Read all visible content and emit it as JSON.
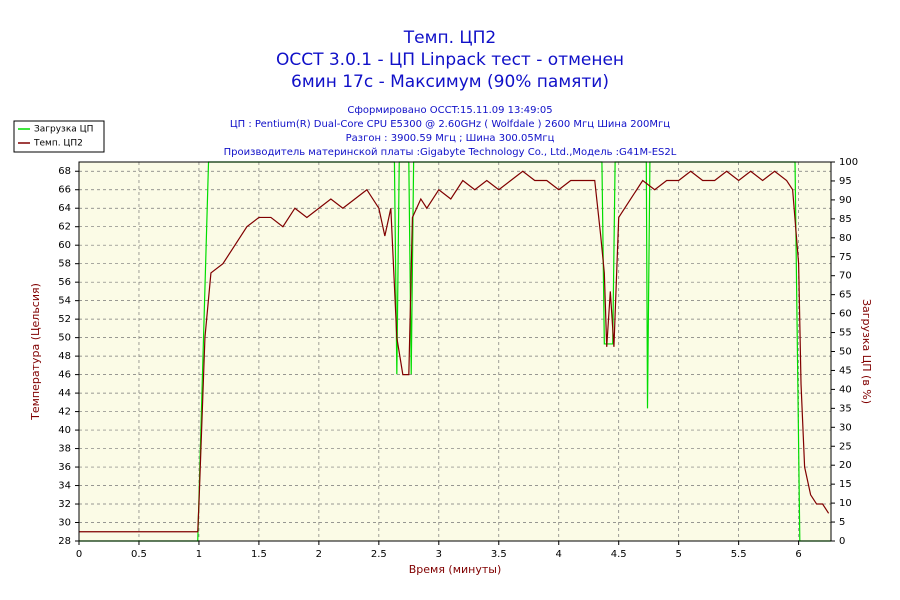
{
  "chart_data": {
    "type": "line",
    "title": [
      "Темп. ЦП2",
      "OCCT 3.0.1 - ЦП Linpack тест - отменен",
      "6мин 17с - Максимум (90% памяти)"
    ],
    "subtitle": [
      "Сформировано OCCT:15.11.09 13:49:05",
      "ЦП : Pentium(R) Dual-Core CPU E5300 @ 2.60GHz ( Wolfdale ) 2600 Мгц Шина 200Мгц",
      "Разгон : 3900.59 Мгц ; Шина 300.05Мгц",
      "Производитель материнской платы :Gigabyte Technology Co., Ltd.,Модель :G41M-ES2L"
    ],
    "x_label": "Время (минуты)",
    "y_label": "Температура (Цельсия)",
    "y2_label": "Загрузка ЦП (в %)",
    "xlim": [
      0,
      6.27
    ],
    "xticks": [
      0,
      0.5,
      1,
      1.5,
      2,
      2.5,
      3,
      3.5,
      4,
      4.5,
      5,
      5.5,
      6
    ],
    "ylim": [
      28,
      69
    ],
    "yticks": [
      28,
      30,
      32,
      34,
      36,
      38,
      40,
      42,
      44,
      46,
      48,
      50,
      52,
      54,
      56,
      58,
      60,
      62,
      64,
      66,
      68
    ],
    "y2lim": [
      0,
      100
    ],
    "y2ticks": [
      0,
      5,
      10,
      15,
      20,
      25,
      30,
      35,
      40,
      45,
      50,
      55,
      60,
      65,
      70,
      75,
      80,
      85,
      90,
      95,
      100
    ],
    "grid": true,
    "legend": "top-left",
    "series": [
      {
        "name": "Загрузка ЦП",
        "color": "#00dd00",
        "axis": "y2",
        "x": [
          0,
          0.99,
          1.08,
          2.63,
          2.65,
          2.67,
          2.75,
          2.77,
          2.79,
          4.36,
          4.38,
          4.45,
          4.47,
          4.73,
          4.74,
          4.76,
          5.97,
          6.01,
          6.27
        ],
        "values": [
          0,
          0,
          100,
          100,
          44,
          100,
          100,
          44,
          100,
          100,
          52,
          52,
          100,
          100,
          35,
          100,
          100,
          0,
          0
        ]
      },
      {
        "name": "Темп. ЦП2",
        "color": "#800000",
        "x": [
          0,
          0.99,
          1.0,
          1.05,
          1.1,
          1.2,
          1.3,
          1.4,
          1.5,
          1.6,
          1.7,
          1.8,
          1.9,
          2.0,
          2.1,
          2.2,
          2.3,
          2.4,
          2.5,
          2.55,
          2.6,
          2.65,
          2.7,
          2.75,
          2.78,
          2.85,
          2.9,
          3.0,
          3.1,
          3.2,
          3.3,
          3.4,
          3.5,
          3.6,
          3.7,
          3.8,
          3.9,
          4.0,
          4.1,
          4.2,
          4.3,
          4.35,
          4.38,
          4.4,
          4.43,
          4.46,
          4.5,
          4.6,
          4.7,
          4.8,
          4.9,
          5.0,
          5.1,
          5.2,
          5.3,
          5.4,
          5.5,
          5.6,
          5.7,
          5.8,
          5.9,
          5.95,
          6.0,
          6.02,
          6.05,
          6.1,
          6.15,
          6.2,
          6.25
        ],
        "values": [
          29,
          29,
          32,
          50,
          57,
          58,
          60,
          62,
          63,
          63,
          62,
          64,
          63,
          64,
          65,
          64,
          65,
          66,
          64,
          61,
          64,
          50,
          46,
          46,
          63,
          65,
          64,
          66,
          65,
          67,
          66,
          67,
          66,
          67,
          68,
          67,
          67,
          66,
          67,
          67,
          67,
          61,
          57,
          49,
          55,
          49,
          63,
          65,
          67,
          66,
          67,
          67,
          68,
          67,
          67,
          68,
          67,
          68,
          67,
          68,
          67,
          66,
          58,
          45,
          36,
          33,
          32,
          32,
          31
        ]
      }
    ]
  }
}
